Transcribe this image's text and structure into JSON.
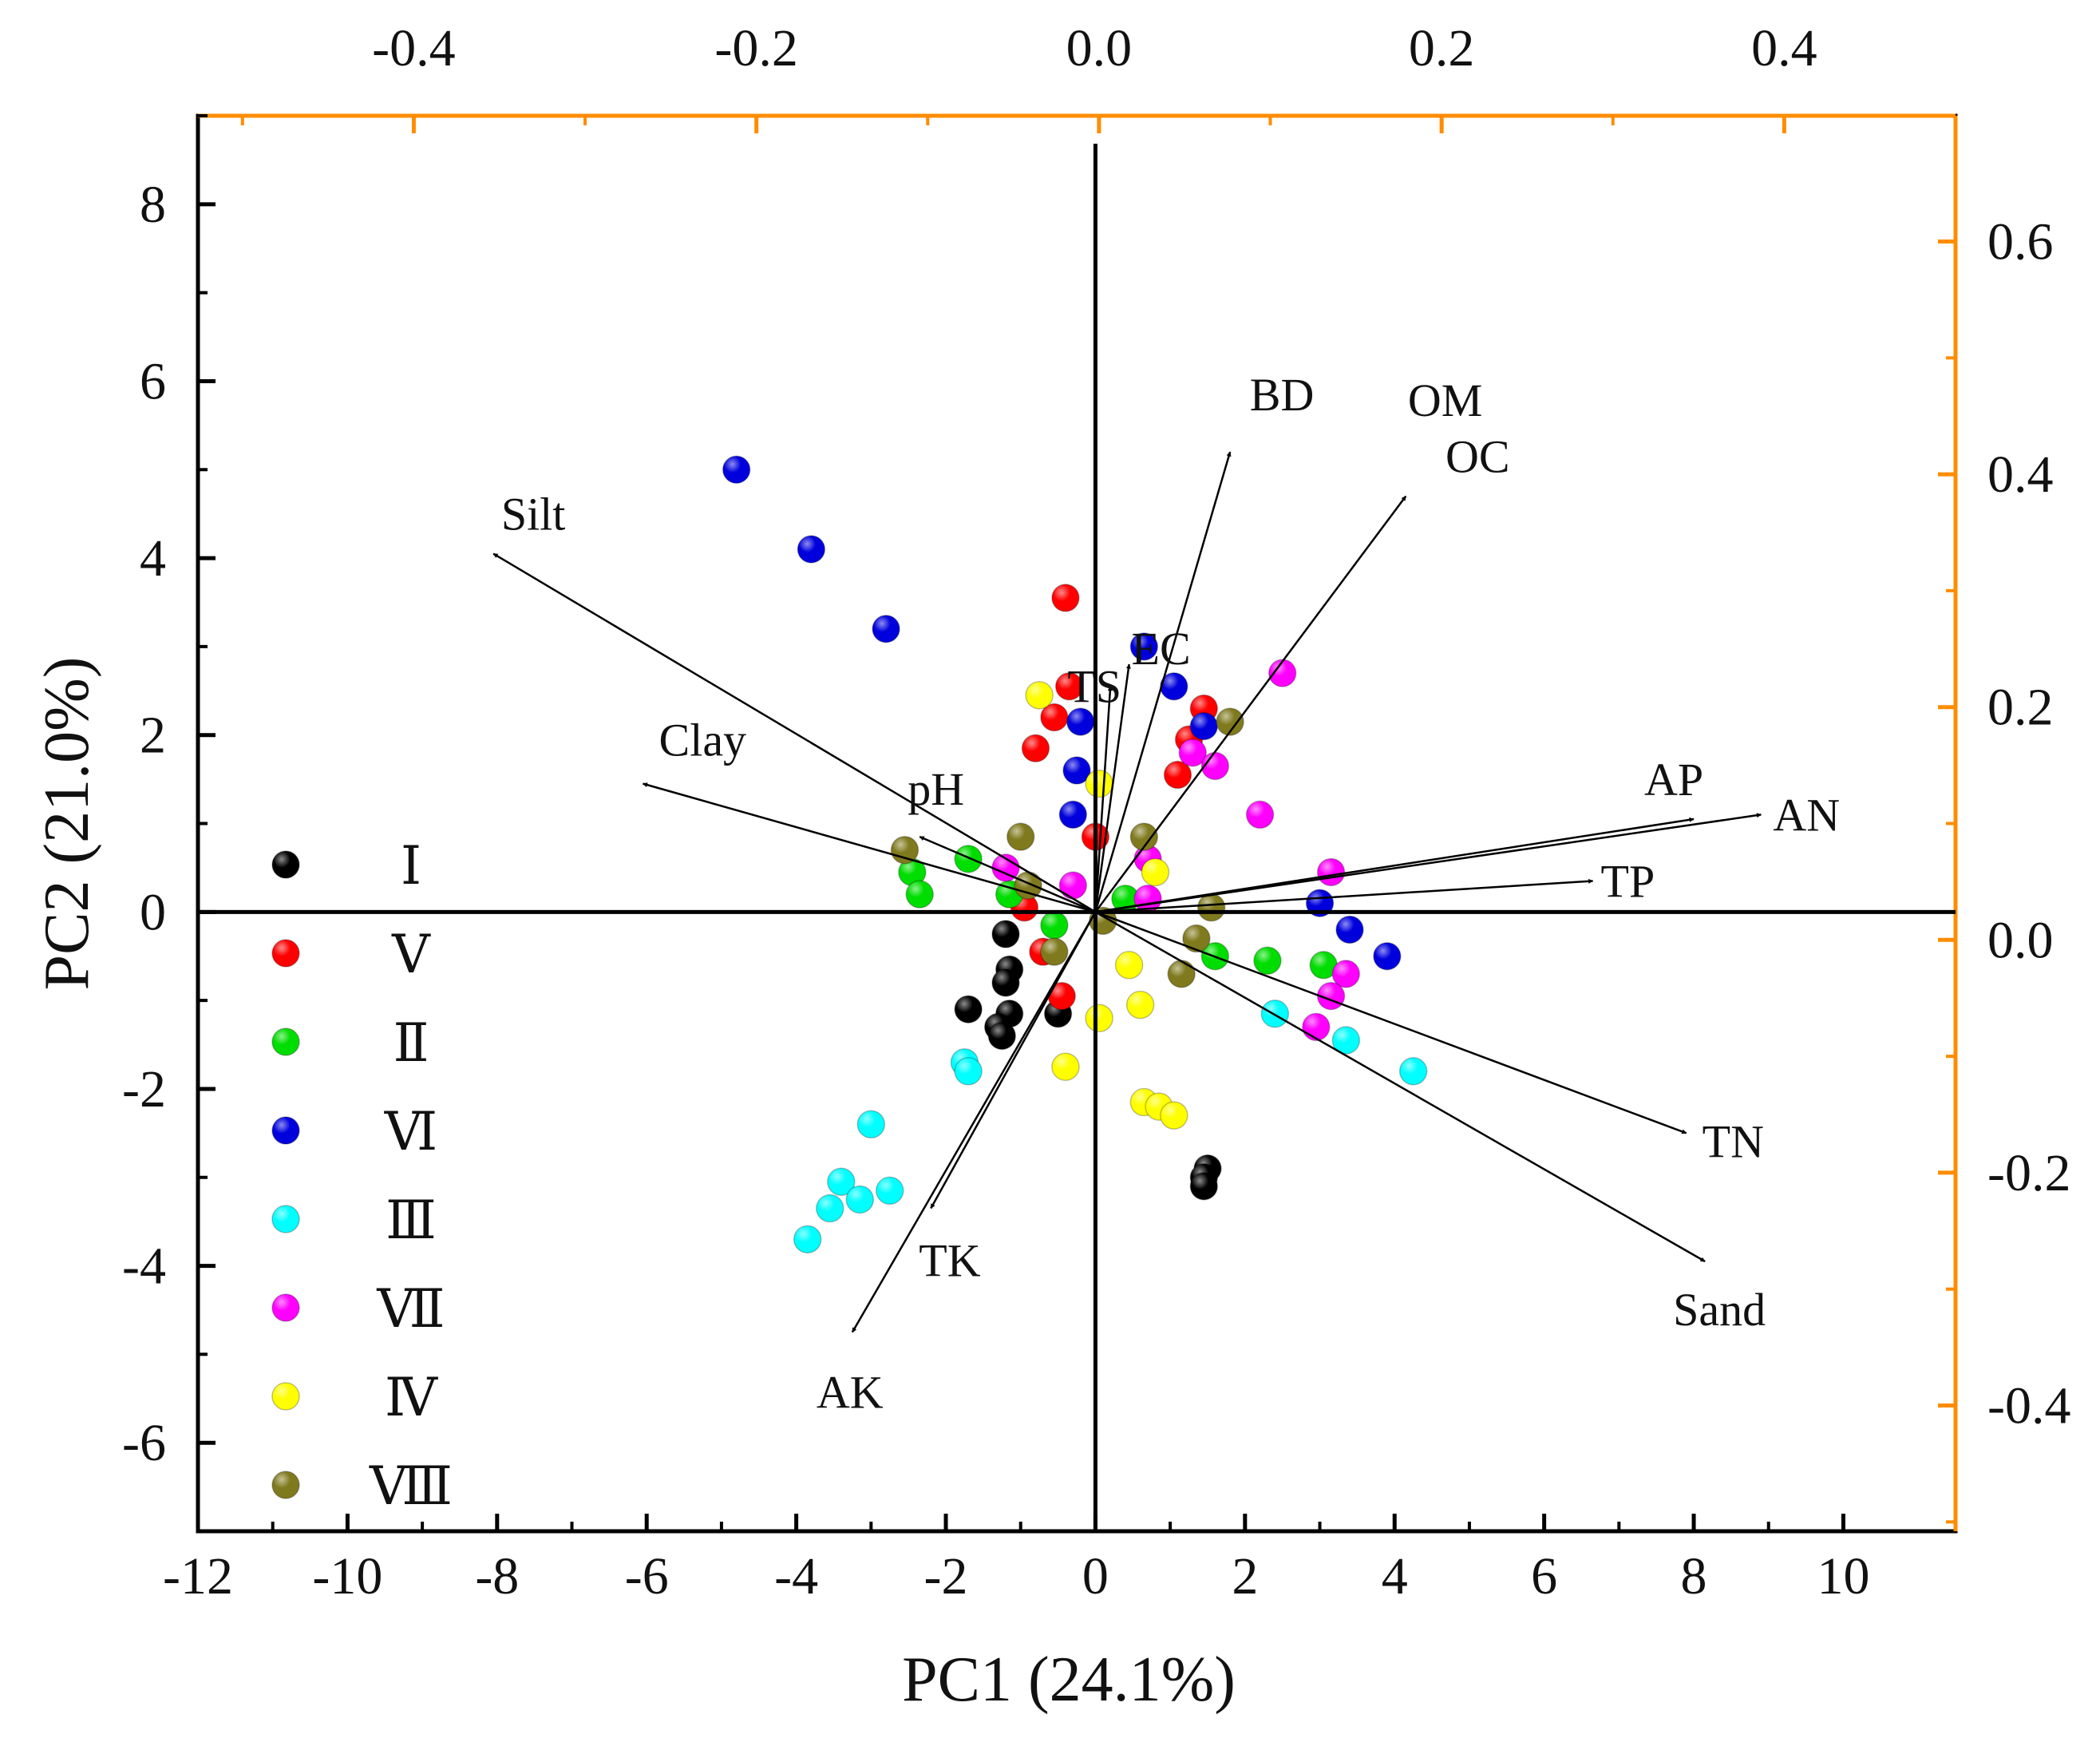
{
  "chart_data": {
    "type": "scatter",
    "subtype": "pca-biplot",
    "title": "",
    "xlabel": "PC1 (24.1%)",
    "ylabel": "PC2 (21.0%)",
    "xlim": [
      -12,
      11.5
    ],
    "ylim": [
      -7,
      9
    ],
    "x_ticks": [
      -12,
      -10,
      -8,
      -6,
      -4,
      -2,
      0,
      2,
      4,
      6,
      8,
      10
    ],
    "y_ticks": [
      -6,
      -4,
      -2,
      0,
      2,
      4,
      6,
      8
    ],
    "secondary_x": {
      "lim": [
        -0.526,
        0.5
      ],
      "ticks": [
        -0.4,
        -0.2,
        0.0,
        0.2,
        0.4
      ],
      "tick_labels": [
        "-0.4",
        "-0.2",
        "0.0",
        "0.2",
        "0.4"
      ]
    },
    "secondary_y": {
      "lim": [
        -0.508,
        0.708
      ],
      "ticks": [
        -0.4,
        -0.2,
        0.0,
        0.2,
        0.4,
        0.6
      ],
      "tick_labels": [
        "-0.4",
        "-0.2",
        "0.0",
        "0.2",
        "0.4",
        "0.6"
      ]
    },
    "axis_color_secondary": "#ff8c00",
    "axis_color_primary": "#000000",
    "x_tick_labels": [
      "-12",
      "-10",
      "-8",
      "-6",
      "-4",
      "-2",
      "0",
      "2",
      "4",
      "6",
      "8",
      "10"
    ],
    "y_tick_labels": [
      "-6",
      "-4",
      "-2",
      "0",
      "2",
      "4",
      "6",
      "8"
    ],
    "legend_position": "left",
    "series": [
      {
        "name": "Ⅰ",
        "color": "#000000",
        "points": [
          [
            -1.2,
            -0.25
          ],
          [
            -1.15,
            -0.65
          ],
          [
            -1.2,
            -0.8
          ],
          [
            -1.7,
            -1.1
          ],
          [
            -1.15,
            -1.15
          ],
          [
            -1.3,
            -1.3
          ],
          [
            -1.25,
            -1.4
          ],
          [
            -0.5,
            -1.15
          ],
          [
            1.5,
            -2.9
          ],
          [
            1.45,
            -3.0
          ],
          [
            1.45,
            -3.1
          ]
        ]
      },
      {
        "name": "Ⅴ",
        "color": "#ff0000",
        "points": [
          [
            -0.4,
            3.55
          ],
          [
            -0.35,
            2.55
          ],
          [
            -0.55,
            2.2
          ],
          [
            -0.8,
            1.85
          ],
          [
            1.45,
            2.3
          ],
          [
            1.25,
            1.95
          ],
          [
            1.1,
            1.55
          ],
          [
            0,
            0.85
          ],
          [
            -0.95,
            0.05
          ],
          [
            -0.7,
            -0.45
          ],
          [
            -0.45,
            -0.95
          ]
        ]
      },
      {
        "name": "Ⅱ",
        "color": "#00dd00",
        "points": [
          [
            -2.45,
            0.45
          ],
          [
            -2.35,
            0.2
          ],
          [
            -1.7,
            0.6
          ],
          [
            -1.15,
            0.2
          ],
          [
            -0.55,
            -0.15
          ],
          [
            0.4,
            0.15
          ],
          [
            1.6,
            -0.5
          ],
          [
            2.3,
            -0.55
          ],
          [
            3.05,
            -0.6
          ]
        ]
      },
      {
        "name": "Ⅵ",
        "color": "#0000dd",
        "points": [
          [
            -4.8,
            5.0
          ],
          [
            -3.8,
            4.1
          ],
          [
            -2.8,
            3.2
          ],
          [
            0.65,
            3.0
          ],
          [
            1.05,
            2.55
          ],
          [
            1.45,
            2.1
          ],
          [
            -0.2,
            2.15
          ],
          [
            -0.25,
            1.6
          ],
          [
            -0.3,
            1.1
          ],
          [
            3.0,
            0.1
          ],
          [
            3.4,
            -0.2
          ],
          [
            3.9,
            -0.5
          ]
        ]
      },
      {
        "name": "Ⅲ",
        "color": "#00ffff",
        "points": [
          [
            -1.75,
            -1.7
          ],
          [
            -1.7,
            -1.8
          ],
          [
            -3.0,
            -2.4
          ],
          [
            -3.4,
            -3.05
          ],
          [
            -3.55,
            -3.35
          ],
          [
            -3.15,
            -3.25
          ],
          [
            -2.75,
            -3.15
          ],
          [
            -3.85,
            -3.7
          ],
          [
            2.4,
            -1.15
          ],
          [
            3.35,
            -1.45
          ],
          [
            4.25,
            -1.8
          ]
        ]
      },
      {
        "name": "Ⅶ",
        "color": "#ff00ff",
        "points": [
          [
            2.5,
            2.7
          ],
          [
            1.3,
            1.8
          ],
          [
            1.6,
            1.65
          ],
          [
            2.2,
            1.1
          ],
          [
            0.7,
            0.6
          ],
          [
            -1.2,
            0.5
          ],
          [
            -0.3,
            0.3
          ],
          [
            0.7,
            0.15
          ],
          [
            3.15,
            0.45
          ],
          [
            3.35,
            -0.7
          ],
          [
            3.15,
            -0.95
          ],
          [
            2.95,
            -1.3
          ]
        ]
      },
      {
        "name": "Ⅳ",
        "color": "#ffff00",
        "points": [
          [
            -0.75,
            2.45
          ],
          [
            0.05,
            1.45
          ],
          [
            0.8,
            0.45
          ],
          [
            0.45,
            -0.6
          ],
          [
            0.6,
            -1.05
          ],
          [
            0.05,
            -1.2
          ],
          [
            -0.4,
            -1.75
          ],
          [
            0.65,
            -2.15
          ],
          [
            0.85,
            -2.2
          ],
          [
            1.05,
            -2.3
          ]
        ]
      },
      {
        "name": "Ⅷ",
        "color": "#807a1e",
        "points": [
          [
            -2.55,
            0.7
          ],
          [
            -1.0,
            0.85
          ],
          [
            0.65,
            0.85
          ],
          [
            1.8,
            2.15
          ],
          [
            1.55,
            0.05
          ],
          [
            1.35,
            -0.3
          ],
          [
            1.15,
            -0.7
          ],
          [
            -0.55,
            -0.45
          ],
          [
            -0.9,
            0.3
          ],
          [
            0.1,
            -0.1
          ]
        ]
      }
    ],
    "loadings": [
      {
        "name": "OM",
        "x": 4.25,
        "y": 4.75
      },
      {
        "name": "OC",
        "x": 4.15,
        "y": 4.7
      },
      {
        "name": "BD",
        "x": 1.8,
        "y": 5.2
      },
      {
        "name": "EC",
        "x": 0.45,
        "y": 2.8
      },
      {
        "name": "TS",
        "x": 0.2,
        "y": 2.55
      },
      {
        "name": "Silt",
        "x": -8.05,
        "y": 4.05
      },
      {
        "name": "Clay",
        "x": -6.05,
        "y": 1.45
      },
      {
        "name": "pH",
        "x": -2.35,
        "y": 0.85
      },
      {
        "name": "AP",
        "x": 8.0,
        "y": 1.05
      },
      {
        "name": "AN",
        "x": 8.9,
        "y": 1.1
      },
      {
        "name": "TP",
        "x": 6.65,
        "y": 0.35
      },
      {
        "name": "TN",
        "x": 7.9,
        "y": -2.5
      },
      {
        "name": "Sand",
        "x": 8.15,
        "y": -3.95
      },
      {
        "name": "TK",
        "x": -2.2,
        "y": -3.35
      },
      {
        "name": "AK",
        "x": -3.25,
        "y": -4.75
      }
    ]
  }
}
